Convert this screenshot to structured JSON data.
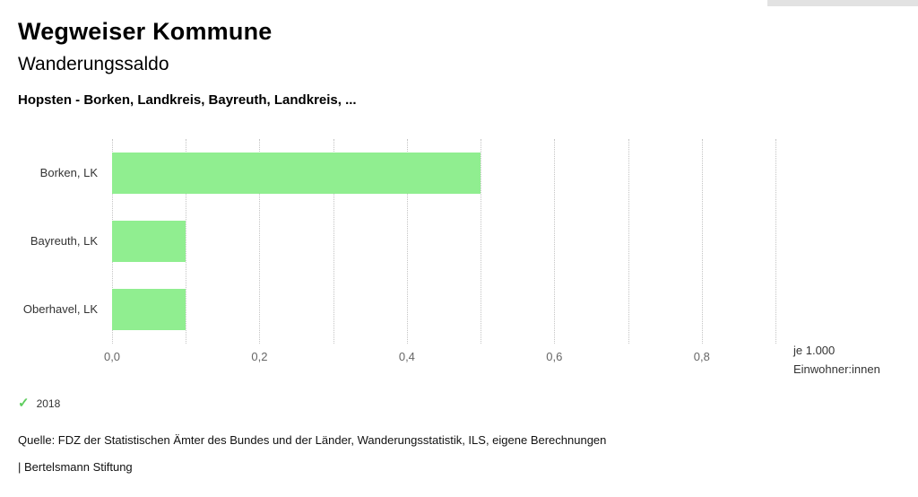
{
  "header": {
    "app_title": "Wegweiser Kommune",
    "chart_title": "Wanderungssaldo",
    "chart_subtitle": "Hopsten - Borken, Landkreis, Bayreuth, Landkreis, ..."
  },
  "chart_data": {
    "type": "bar",
    "orientation": "horizontal",
    "title": "Wanderungssaldo",
    "subtitle": "Hopsten - Borken, Landkreis, Bayreuth, Landkreis, ...",
    "categories": [
      "Borken, LK",
      "Bayreuth, LK",
      "Oberhavel, LK"
    ],
    "series": [
      {
        "name": "2018",
        "values": [
          0.5,
          0.1,
          0.1
        ]
      }
    ],
    "xlim": [
      0,
      0.9
    ],
    "gridline_step": 0.1,
    "grid": true,
    "x_ticks": [
      0,
      0.2,
      0.4,
      0.6,
      0.8
    ],
    "x_tick_labels": [
      "0,0",
      "0,2",
      "0,4",
      "0,6",
      "0,8"
    ],
    "xlabel_line1": "je 1.000",
    "xlabel_line2": "Einwohner:innen",
    "ylabel": "",
    "legend_position": "bottom-left",
    "bar_color": "#90ee90"
  },
  "legend": {
    "check_icon": "✓",
    "check_color": "#5fce5f",
    "label": "2018"
  },
  "footer": {
    "source": "Quelle: FDZ der Statistischen Ämter des Bundes und der Länder, Wanderungsstatistik, ILS, eigene Berechnungen",
    "brand": "| Bertelsmann Stiftung"
  },
  "colors": {
    "bar": "#90ee90",
    "grid": "#c4c4c4",
    "tick_text": "#666666",
    "text": "#000000"
  }
}
